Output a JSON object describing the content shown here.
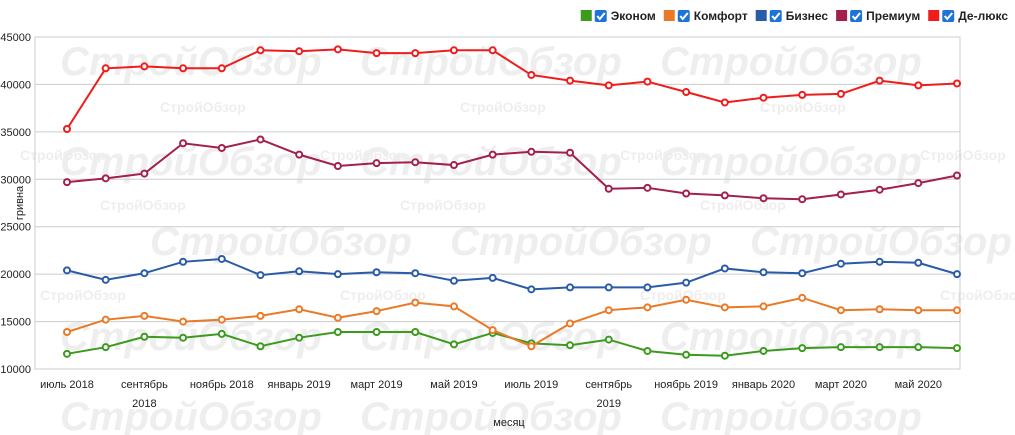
{
  "chart_data": {
    "type": "line",
    "watermark": "СтройОбзор",
    "x_label": "месяц",
    "y_label": "гривна",
    "categories": [
      "июль 2018",
      null,
      "сентябрь 2018",
      null,
      "ноябрь 2018",
      null,
      "январь 2019",
      null,
      "март 2019",
      null,
      "май 2019",
      null,
      "июль 2019",
      null,
      "сентябрь 2019",
      null,
      "ноябрь 2019",
      null,
      "январь 2020",
      null,
      "март 2020",
      null,
      "май 2020",
      null
    ],
    "ylim": [
      10000,
      45000
    ],
    "yticks": [
      10000,
      15000,
      20000,
      25000,
      30000,
      35000,
      40000,
      45000
    ],
    "grid": true,
    "legend": "top-right",
    "series": [
      {
        "name": "Эконом",
        "color": "#3c9a1e",
        "values": [
          11600,
          12300,
          13400,
          13300,
          13700,
          12400,
          13300,
          13900,
          13900,
          13900,
          12600,
          13800,
          12700,
          12500,
          13100,
          11900,
          11500,
          11400,
          11900,
          12200,
          12300,
          12300,
          12300,
          12200
        ]
      },
      {
        "name": "Комфорт",
        "color": "#ea7a27",
        "values": [
          13900,
          15200,
          15600,
          15000,
          15200,
          15600,
          16300,
          15400,
          16100,
          17000,
          16600,
          14100,
          12400,
          14800,
          16200,
          16500,
          17300,
          16500,
          16600,
          17500,
          16200,
          16300,
          16200,
          16200
        ]
      },
      {
        "name": "Бизнес",
        "color": "#2a5ba8",
        "values": [
          20400,
          19400,
          20100,
          21300,
          21600,
          19900,
          20300,
          20000,
          20200,
          20100,
          19300,
          19600,
          18400,
          18600,
          18600,
          18600,
          19100,
          20600,
          20200,
          20100,
          21100,
          21300,
          21200,
          20000
        ]
      },
      {
        "name": "Премиум",
        "color": "#a31f4e",
        "values": [
          29700,
          30100,
          30600,
          33800,
          33300,
          34200,
          32600,
          31400,
          31700,
          31800,
          31500,
          32600,
          32900,
          32800,
          29000,
          29100,
          28500,
          28300,
          28000,
          27900,
          28400,
          28900,
          29600,
          30400
        ]
      },
      {
        "name": "Де-люкс",
        "color": "#f01b1b",
        "values": [
          35300,
          41700,
          41900,
          41700,
          41700,
          43600,
          43500,
          43700,
          43300,
          43300,
          43600,
          43600,
          41000,
          40400,
          39900,
          40300,
          39200,
          38100,
          38600,
          38900,
          39000,
          40400,
          39900,
          40100
        ]
      }
    ]
  }
}
